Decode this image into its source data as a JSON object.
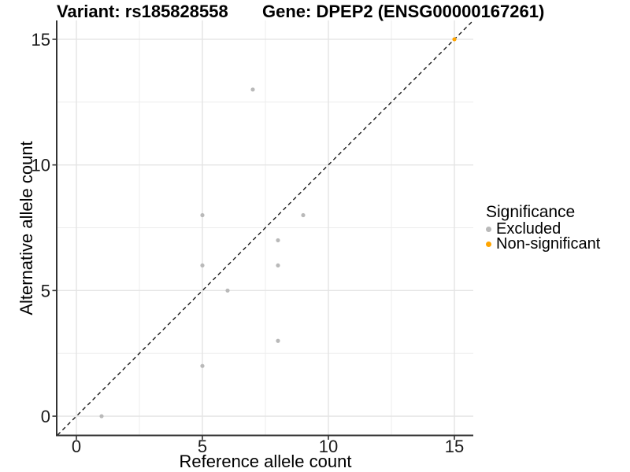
{
  "chart_data": {
    "type": "scatter",
    "title_left": "Variant: rs185828558",
    "title_right": "Gene: DPEP2 (ENSG00000167261)",
    "xlabel": "Reference allele count",
    "ylabel": "Alternative allele count",
    "xlim": [
      -0.75,
      15.75
    ],
    "ylim": [
      -0.75,
      15.75
    ],
    "x_ticks": [
      0,
      5,
      10,
      15
    ],
    "y_ticks": [
      0,
      5,
      10,
      15
    ],
    "x_minor_ticks": [
      2.5,
      7.5,
      12.5
    ],
    "y_minor_ticks": [
      2.5,
      7.5,
      12.5
    ],
    "grid": true,
    "point_radius": 2.6,
    "legend_dot_radius": 3.5,
    "identity_line": {
      "style": "dashed",
      "equation": "y = x"
    },
    "colors": {
      "excluded": "#b9b9b9",
      "non_significant": "#ffa500",
      "grid_major": "#e4e4e4",
      "grid_minor": "#ededed",
      "axis_line": "#333333",
      "identity_line": "#1a1a1a",
      "tick_text": "#1a1a1a"
    },
    "legend": {
      "title": "Significance",
      "position": "right",
      "items": [
        {
          "label": "Excluded",
          "color": "#b9b9b9"
        },
        {
          "label": "Non-significant",
          "color": "#ffa500"
        }
      ]
    },
    "series": [
      {
        "name": "Excluded",
        "color": "#b9b9b9",
        "points": [
          [
            1,
            0
          ],
          [
            5,
            2
          ],
          [
            5,
            6
          ],
          [
            5,
            8
          ],
          [
            6,
            5
          ],
          [
            7,
            13
          ],
          [
            8,
            3
          ],
          [
            8,
            6
          ],
          [
            8,
            7
          ],
          [
            9,
            8
          ]
        ]
      },
      {
        "name": "Non-significant",
        "color": "#ffa500",
        "points": [
          [
            15,
            15
          ]
        ]
      }
    ]
  }
}
